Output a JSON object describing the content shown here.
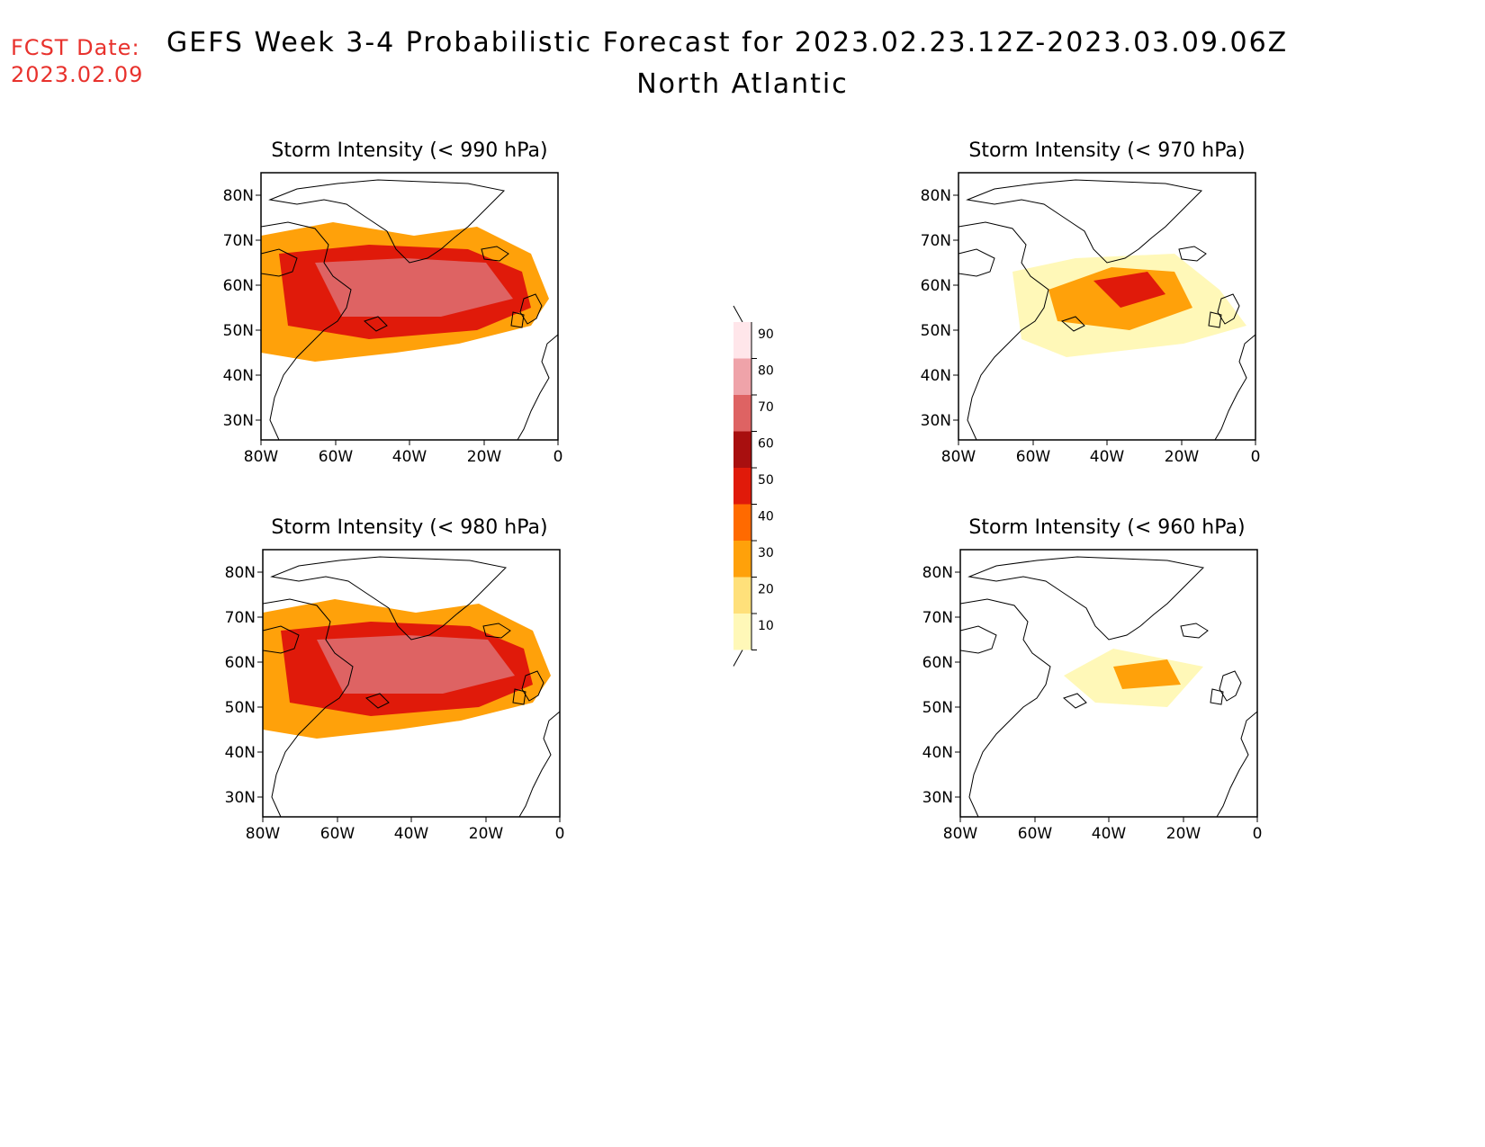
{
  "header": {
    "fcst_label": "FCST Date:",
    "fcst_date": "2023.02.09",
    "title": "GEFS Week 3-4 Probabilistic Forecast for 2023.02.23.12Z-2023.03.09.06Z",
    "region": "North Atlantic"
  },
  "panels": [
    {
      "id": "p990",
      "title": "Storm Intensity (< 990 hPa)",
      "level": 3
    },
    {
      "id": "p970",
      "title": "Storm Intensity (< 970 hPa)",
      "level": 2
    },
    {
      "id": "p980",
      "title": "Storm Intensity (< 980 hPa)",
      "level": 3
    },
    {
      "id": "p960",
      "title": "Storm Intensity (< 960 hPa)",
      "level": 1
    }
  ],
  "axes": {
    "lat_labels": [
      "80N",
      "70N",
      "60N",
      "50N",
      "40N",
      "30N"
    ],
    "lon_labels": [
      "80W",
      "60W",
      "40W",
      "20W",
      "0"
    ]
  },
  "colorbar": {
    "labels": [
      "90",
      "80",
      "70",
      "60",
      "50",
      "40",
      "30",
      "20",
      "10"
    ],
    "colors": [
      "#ffe6ea",
      "#efa3a9",
      "#de6363",
      "#a80f0f",
      "#e01a0a",
      "#ff6a00",
      "#ffa10a",
      "#ffe07a",
      "#fff8b8"
    ]
  }
}
